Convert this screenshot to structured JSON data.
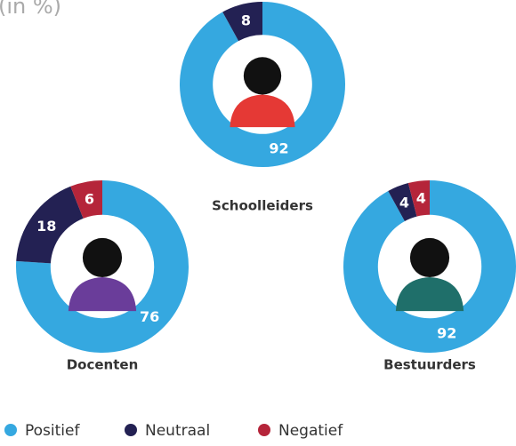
{
  "subtitle": "(in %)",
  "legend": {
    "categories": [
      "Positief",
      "Neutraal",
      "Negatief"
    ],
    "colors": [
      "#35a8e0",
      "#232153",
      "#b5253a"
    ]
  },
  "chart_data": [
    {
      "type": "pie",
      "title": "Schoolleiders",
      "values": [
        92,
        8,
        null
      ]
    },
    {
      "type": "pie",
      "title": "Docenten",
      "values": [
        76,
        18,
        6
      ]
    },
    {
      "type": "pie",
      "title": "Bestuurders",
      "values": [
        92,
        4,
        4
      ]
    }
  ]
}
